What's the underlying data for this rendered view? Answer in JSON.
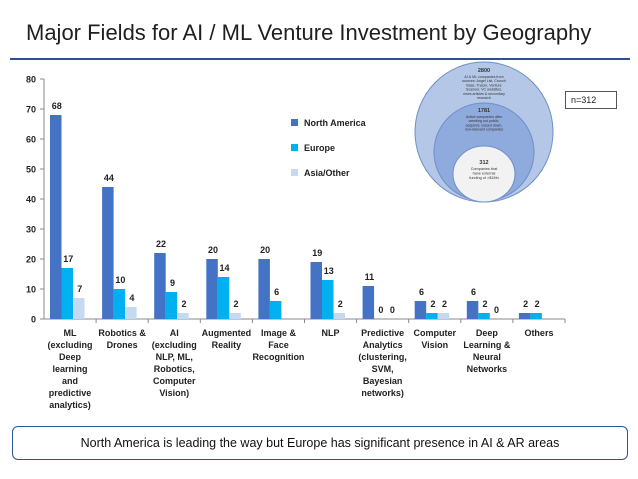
{
  "title": "Major Fields for AI / ML Venture Investment by Geography",
  "note": "North America is leading the way but Europe has significant presence in AI & AR areas",
  "sample_label": "n=312",
  "funnel": {
    "outer": {
      "value": "2800",
      "text": [
        "AI & ML companies from",
        "sources: Angel List, Crunch",
        "Base, Tracxn, Venture",
        "Scanner, VC websites,",
        "news articles & secondary",
        "research"
      ]
    },
    "middle": {
      "value": "1781",
      "text": [
        "Active companies after",
        "weeding out public,",
        "acquired, closed down,",
        "non-relevant companies"
      ]
    },
    "inner": {
      "value": "312",
      "text": [
        "Companies that",
        "have external",
        "funding of >$1Mn"
      ]
    }
  },
  "colors": {
    "north_america": "#4472c4",
    "europe": "#00b0f0",
    "asia_other": "#c5d9f1",
    "title_rule": "#2f4f8f",
    "note_border": "#2f5597",
    "funnel_outer": "#b4c7e7",
    "funnel_middle": "#8faadc",
    "funnel_inner": "#f2f2f2"
  },
  "chart_data": {
    "type": "bar",
    "categories": [
      [
        "ML",
        "(excluding",
        "Deep",
        "learning",
        "and",
        "predictive",
        "analytics)"
      ],
      [
        "Robotics &",
        "Drones"
      ],
      [
        "AI",
        "(excluding",
        "NLP, ML,",
        "Robotics,",
        "Computer",
        "Vision)"
      ],
      [
        "Augmented",
        "Reality"
      ],
      [
        "Image &",
        "Face",
        "Recognition"
      ],
      [
        "NLP"
      ],
      [
        "Predictive",
        "Analytics",
        "(clustering,",
        "SVM,",
        "Bayesian",
        "networks)"
      ],
      [
        "Computer",
        "Vision"
      ],
      [
        "Deep",
        "Learning &",
        "Neural",
        "Networks"
      ],
      [
        "Others"
      ]
    ],
    "series": [
      {
        "name": "North America",
        "values": [
          68,
          44,
          22,
          20,
          20,
          19,
          11,
          6,
          6,
          2
        ],
        "labels": [
          "68",
          "44",
          "22",
          "20",
          "20",
          "19",
          "11",
          "6",
          "6",
          "2"
        ]
      },
      {
        "name": "Europe",
        "values": [
          17,
          10,
          9,
          14,
          6,
          13,
          0,
          2,
          2,
          2
        ],
        "labels": [
          "17",
          "10",
          "9",
          "14",
          "6",
          "13",
          "0",
          "2",
          "2",
          "2"
        ]
      },
      {
        "name": "Asia/Other",
        "values": [
          7,
          4,
          2,
          2,
          0,
          2,
          0,
          2,
          0,
          0
        ],
        "labels": [
          "7",
          "4",
          "2",
          "2",
          "",
          "2",
          "0",
          "2",
          "0",
          ""
        ]
      }
    ],
    "ylim": [
      0,
      80
    ],
    "yticks": [
      0,
      10,
      20,
      30,
      40,
      50,
      60,
      70,
      80
    ],
    "legend_position": "right",
    "grid": false
  }
}
